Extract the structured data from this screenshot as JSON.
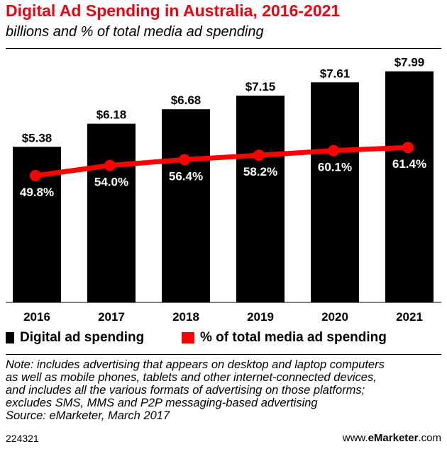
{
  "chart_data": {
    "type": "bar",
    "title": "Digital Ad Spending in Australia, 2016-2021",
    "subtitle": "billions and % of total media ad spending",
    "categories": [
      "2016",
      "2017",
      "2018",
      "2019",
      "2020",
      "2021"
    ],
    "series": [
      {
        "name": "Digital ad spending",
        "type": "bar",
        "values": [
          5.38,
          6.18,
          6.68,
          7.15,
          7.61,
          7.99
        ],
        "labels": [
          "$5.38",
          "$6.18",
          "$6.68",
          "$7.15",
          "$7.61",
          "$7.99"
        ]
      },
      {
        "name": "% of total media ad spending",
        "type": "line",
        "values": [
          49.8,
          54.0,
          56.4,
          58.2,
          60.1,
          61.4
        ],
        "labels": [
          "49.8%",
          "54.0%",
          "56.4%",
          "58.2%",
          "60.1%",
          "61.4%"
        ]
      }
    ],
    "bar_ylim": [
      0,
      8.4
    ],
    "line_ylim": [
      0,
      100
    ],
    "legend_position": "bottom",
    "grid": false,
    "colors": {
      "bar": "#000000",
      "line": "#ff0000",
      "title": "#e30613"
    }
  },
  "note_lines": [
    "Note: includes advertising that appears on desktop and laptop computers",
    "as well as mobile phones, tablets and other internet-connected devices,",
    "and includes all the various formats of advertising on those platforms;",
    "excludes SMS, MMS and P2P messaging-based advertising",
    "Source: eMarketer, March 2017"
  ],
  "footer": {
    "id": "224321",
    "brand_prefix": "www.",
    "brand_name": "eMarketer",
    "brand_suffix": ".com"
  }
}
